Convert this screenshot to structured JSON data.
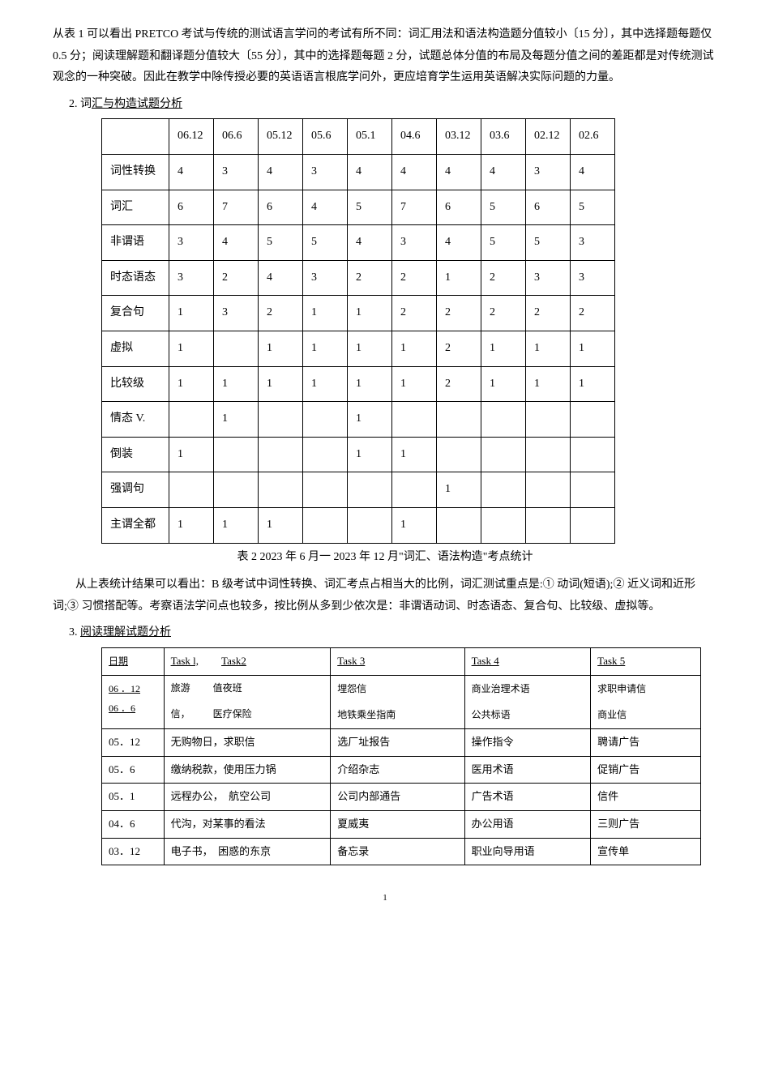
{
  "intro": "从表 1 可以看出 PRETCO 考试与传统的测试语言学问的考试有所不同：词汇用法和语法构造题分值较小〔15 分〕，其中选择题每题仅 0.5 分；阅读理解题和翻译题分值较大〔55 分〕，其中的选择题每题 2 分，试题总体分值的布局及每题分值之间的差距都是对传统测试观念的一种突破。因此在教学中除传授必要的英语语言根底学问外，更应培育学生运用英语解决实际问题的力量。",
  "section2_label": "2. 词",
  "section2_underline": "汇与构造试题分析",
  "table1": {
    "header": [
      "",
      "06.12",
      "06.6",
      "05.12",
      "05.6",
      "05.1",
      "04.6",
      "03.12",
      "03.6",
      "02.12",
      "02.6"
    ],
    "rows": [
      [
        "词性转换",
        "4",
        "3",
        "4",
        "3",
        "4",
        "4",
        "4",
        "4",
        "3",
        "4"
      ],
      [
        "词汇",
        "6",
        "7",
        "6",
        "4",
        "5",
        "7",
        "6",
        "5",
        "6",
        "5"
      ],
      [
        "非谓语",
        "3",
        "4",
        "5",
        "5",
        "4",
        "3",
        "4",
        "5",
        "5",
        "3"
      ],
      [
        "时态语态",
        "3",
        "2",
        "4",
        "3",
        "2",
        "2",
        "1",
        "2",
        "3",
        "3"
      ],
      [
        "复合句",
        "1",
        "3",
        "2",
        "1",
        "1",
        "2",
        "2",
        "2",
        "2",
        "2"
      ],
      [
        "虚拟",
        "1",
        "",
        "1",
        "1",
        "1",
        "1",
        "2",
        "1",
        "1",
        "1"
      ],
      [
        "比较级",
        "1",
        "1",
        "1",
        "1",
        "1",
        "1",
        "2",
        "1",
        "1",
        "1"
      ],
      [
        "情态 V.",
        "",
        "1",
        "",
        "",
        "1",
        "",
        "",
        "",
        "",
        ""
      ],
      [
        "倒装",
        "1",
        "",
        "",
        "",
        "1",
        "1",
        "",
        "",
        "",
        ""
      ],
      [
        "强调句",
        "",
        "",
        "",
        "",
        "",
        "",
        "1",
        "",
        "",
        ""
      ],
      [
        "主谓全都",
        "1",
        "1",
        "1",
        "",
        "",
        "1",
        "",
        "",
        "",
        ""
      ]
    ]
  },
  "caption1": "表 2  2023 年 6 月一 2023 年 12 月\"词汇、语法构造\"考点统计",
  "para2": "从上表统计结果可以看出：B  级考试中词性转换、词汇考点占相当大的比例，词汇测试重点是:① 动词(短语);② 近义词和近形词;③ 习惯搭配等。考察语法学问点也较多，按比例从多到少依次是：非谓语动词、时态语态、复合句、比较级、虚拟等。",
  "section3_label": "3. ",
  "section3_underline": "阅读理解试题分析",
  "table2": {
    "hdr_row": {
      "c1a": "日期",
      "c1b_t1": "Task l,",
      "c1b_t2": "Task2",
      "c2": "Task 3",
      "c3": "Task 4",
      "c4": "Task 5"
    },
    "row0612": {
      "date": "06 ．12",
      "t1": "旅游",
      "t2": "值夜班",
      "c2": "埋怨信",
      "c3": "商业治理术语",
      "c4": "求职申请信"
    },
    "row066": {
      "date": "06 ．6",
      "t1": "信，",
      "t2": "医疗保险",
      "c2": "地铁乘坐指南",
      "c3": "公共标语",
      "c4": "商业信"
    },
    "rows": [
      [
        "05．12",
        "无购物日，求职信",
        "选厂址报告",
        "操作指令",
        "聘请广告"
      ],
      [
        "05．6",
        "缴纳税款，使用压力锅",
        "介绍杂志",
        "医用术语",
        "促销广告"
      ],
      [
        "05．1",
        "远程办公，　航空公司",
        "公司内部通告",
        "广告术语",
        "信件"
      ],
      [
        "04．6",
        "代沟，对某事的看法",
        "夏威夷",
        "办公用语",
        "三则广告"
      ],
      [
        "03．12",
        "电子书，　困惑的东京",
        "备忘录",
        "职业向导用语",
        "宣传单"
      ]
    ]
  },
  "page_number": "1"
}
